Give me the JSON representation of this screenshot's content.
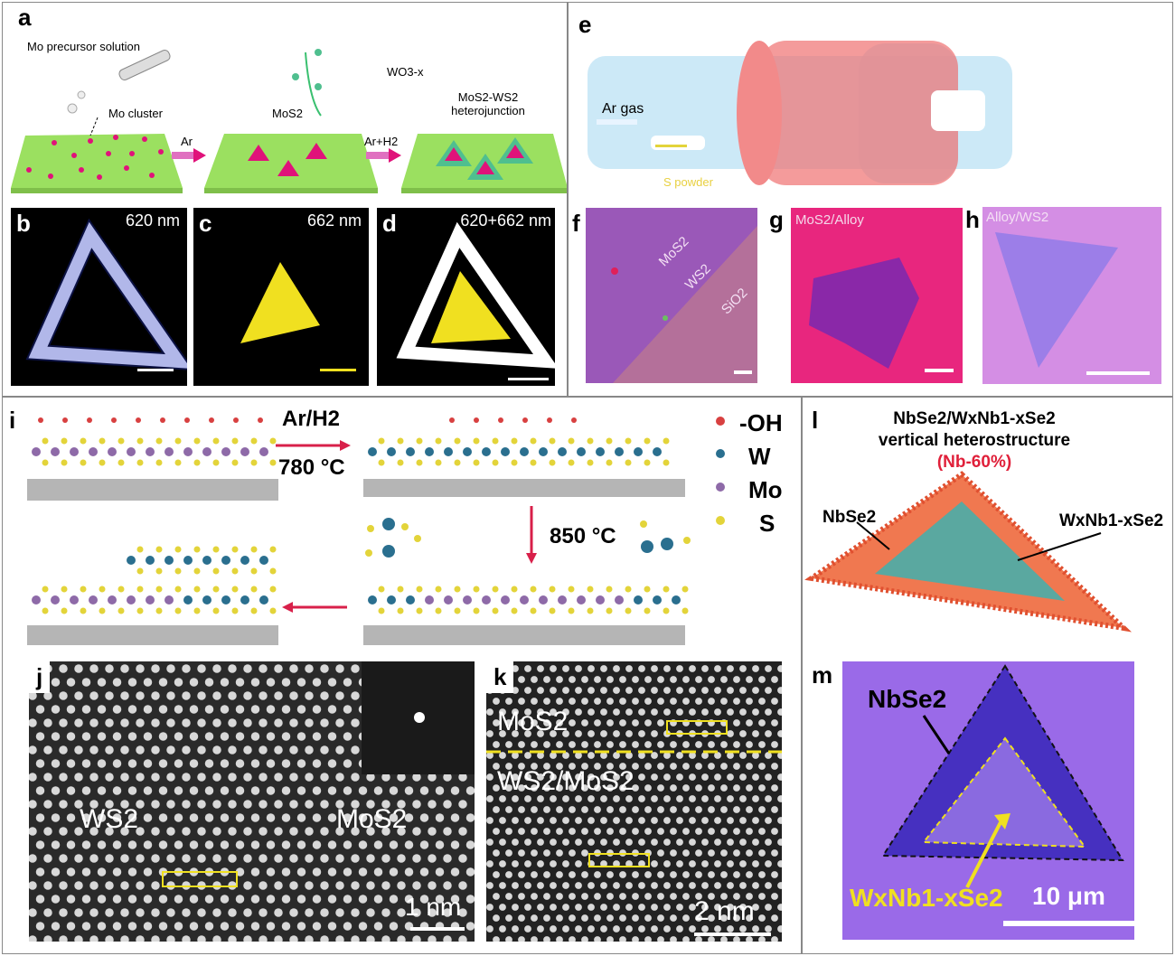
{
  "panels": {
    "a": {
      "label": "a",
      "precursor": "Mo precursor solution",
      "cluster": "Mo cluster",
      "mos2": "MoS2",
      "arrow1": "Ar",
      "arrow2": "Ar+H2",
      "wo3": "WO3-x",
      "hetero1": "MoS2-WS2",
      "hetero2": "heterojunction"
    },
    "b": {
      "label": "b",
      "wavelength": "620 nm"
    },
    "c": {
      "label": "c",
      "wavelength": "662 nm"
    },
    "d": {
      "label": "d",
      "wavelength": "620+662 nm"
    },
    "e": {
      "label": "e",
      "gas": "Ar gas",
      "powder": "S powder"
    },
    "f": {
      "label": "f",
      "mos2": "MoS2",
      "ws2": "WS2",
      "sio2": "SiO2"
    },
    "g": {
      "label": "g",
      "title": "MoS2/Alloy"
    },
    "h": {
      "label": "h",
      "title": "Alloy/WS2"
    },
    "i": {
      "label": "i",
      "step1a": "Ar/H2",
      "step1b": "780 °C",
      "step2": "850 °C",
      "legend": [
        "-OH",
        "W",
        "Mo",
        "S"
      ]
    },
    "j": {
      "label": "j",
      "ws2": "WS2",
      "mos2": "MoS2",
      "scale": "1 nm"
    },
    "k": {
      "label": "k",
      "mos2": "MoS2",
      "ws2mos2": "WS2/MoS2",
      "scale": "2 nm"
    },
    "l": {
      "label": "l",
      "title1": "NbSe2/WxNb1-xSe2",
      "title2": "vertical heterostructure",
      "nb": "(Nb-60%)",
      "nbse2": "NbSe2",
      "wnbse2": "WxNb1-xSe2"
    },
    "m": {
      "label": "m",
      "nbse2": "NbSe2",
      "wnbse2": "WxNb1-xSe2",
      "scale": "10 μm"
    }
  },
  "colors": {
    "substrate": "#9be060",
    "triangle": "#e0127a",
    "ws2_ring": "#4fbf8f",
    "oh": "#d84040",
    "w": "#2a6f8f",
    "mo": "#8e6aa8",
    "s": "#e3d43a",
    "red_arrow": "#d8204a",
    "furnace": "#f07070",
    "tube": "#bfe3f5"
  }
}
